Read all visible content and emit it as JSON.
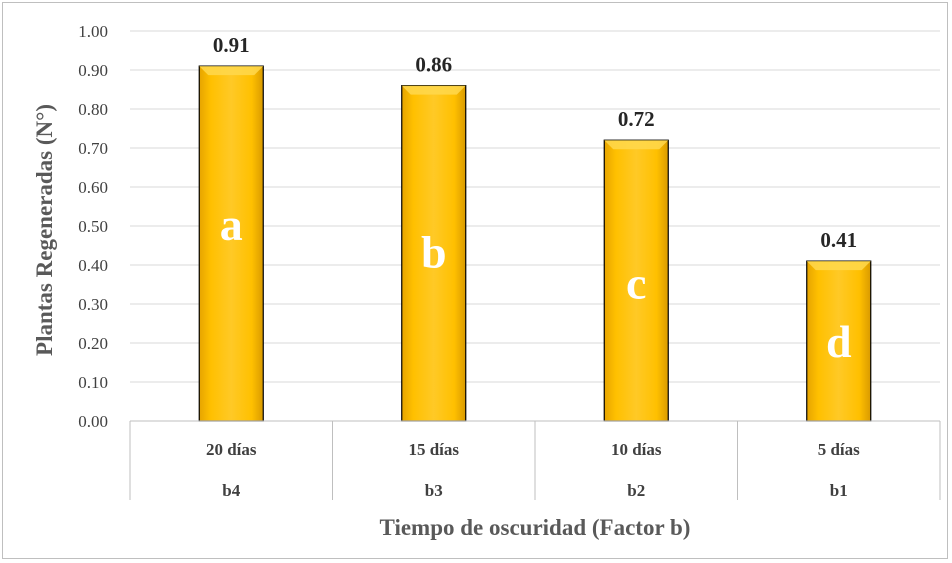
{
  "chart_data": {
    "type": "bar",
    "categories": [
      "20 días",
      "15 días",
      "10 días",
      "5 días"
    ],
    "subcategories": [
      "b4",
      "b3",
      "b2",
      "b1"
    ],
    "values": [
      0.91,
      0.86,
      0.72,
      0.41
    ],
    "data_labels": [
      "0.91",
      "0.86",
      "0.72",
      "0.41"
    ],
    "group_letters": [
      "a",
      "b",
      "c",
      "d"
    ],
    "xlabel": "Tiempo de oscuridad (Factor b)",
    "ylabel": "Plantas Regeneradas (N°)",
    "ylim": [
      0,
      1.0
    ],
    "yticks": [
      "0.00",
      "0.10",
      "0.20",
      "0.30",
      "0.40",
      "0.50",
      "0.60",
      "0.70",
      "0.80",
      "0.90",
      "1.00"
    ],
    "grid": true,
    "legend": "none",
    "colors": {
      "bar_fill": "#FFC000",
      "bar_edge": "#000000",
      "grid": "#d9d9d9"
    }
  }
}
